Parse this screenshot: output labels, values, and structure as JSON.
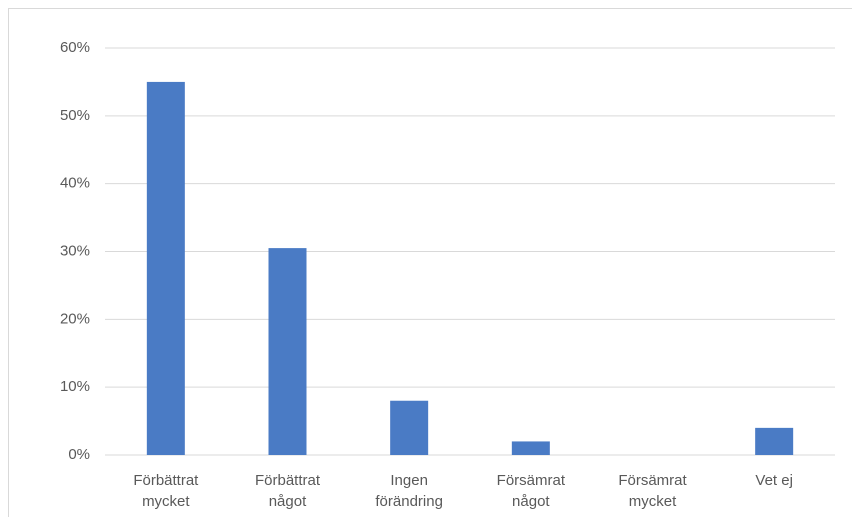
{
  "chart_data": {
    "type": "bar",
    "categories": [
      "Förbättrat\nmycket",
      "Förbättrat\nnågot",
      "Ingen\nförändring",
      "Försämrat\nnågot",
      "Försämrat\nmycket",
      "Vet ej"
    ],
    "values": [
      55,
      30.5,
      8,
      2,
      0,
      4
    ],
    "color": "#4a7bc5",
    "ylim": [
      0,
      60
    ],
    "yticks": [
      {
        "value": 0,
        "label": "0%"
      },
      {
        "value": 10,
        "label": "10%"
      },
      {
        "value": 20,
        "label": "20%"
      },
      {
        "value": 30,
        "label": "30%"
      },
      {
        "value": 40,
        "label": "40%"
      },
      {
        "value": 50,
        "label": "50%"
      },
      {
        "value": 60,
        "label": "60%"
      }
    ],
    "grid": true
  }
}
